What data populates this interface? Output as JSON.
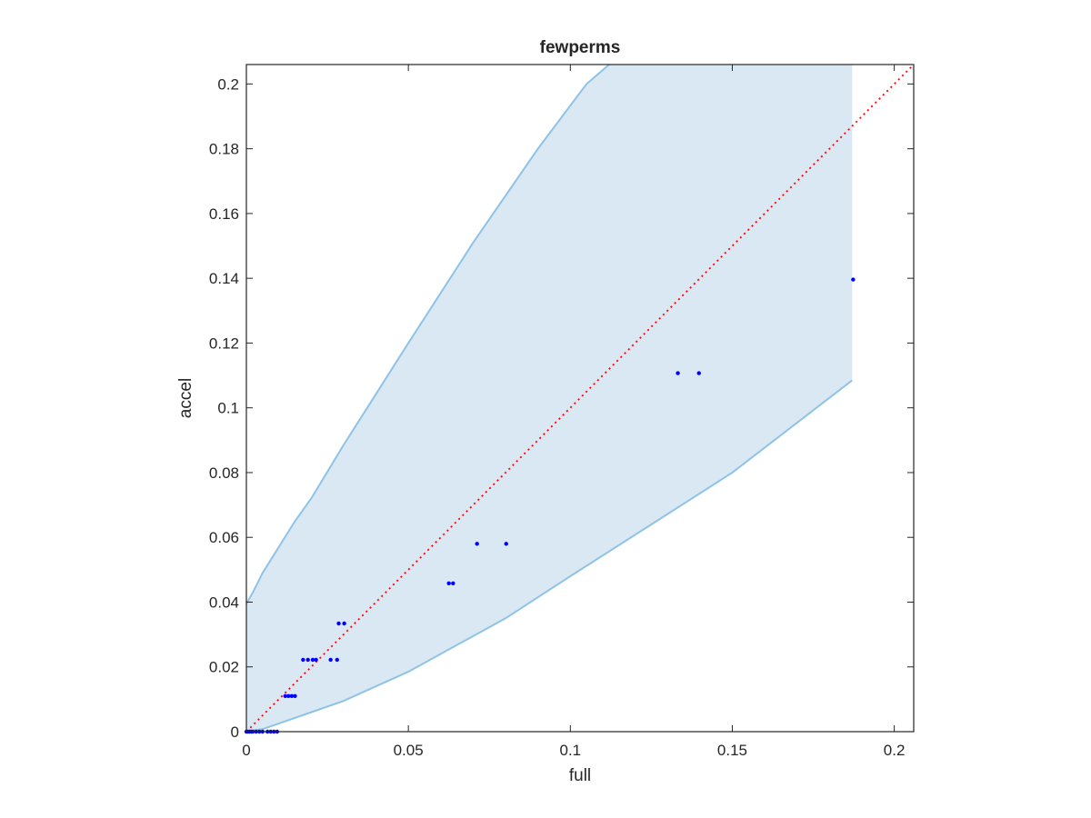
{
  "chart_data": {
    "type": "scatter",
    "title": "fewperms",
    "xlabel": "full",
    "ylabel": "accel",
    "xlim": [
      0,
      0.206
    ],
    "ylim": [
      0,
      0.206
    ],
    "xticks": [
      0,
      0.05,
      0.1,
      0.15,
      0.2
    ],
    "yticks": [
      0,
      0.02,
      0.04,
      0.06,
      0.08,
      0.1,
      0.12,
      0.14,
      0.16,
      0.18,
      0.2
    ],
    "xtick_labels": [
      "0",
      "0.05",
      "0.1",
      "0.15",
      "0.2"
    ],
    "ytick_labels": [
      "0",
      "0.02",
      "0.04",
      "0.06",
      "0.08",
      "0.1",
      "0.12",
      "0.14",
      "0.16",
      "0.18",
      "0.2"
    ],
    "grid": false,
    "colors": {
      "points": "#0000ff",
      "band_fill": "#dae8f4",
      "band_edge": "#8fc3e6",
      "diagonal": "#ff0000",
      "axes": "#262626"
    },
    "band": {
      "upper": [
        [
          0,
          0.0395
        ],
        [
          0.002,
          0.043
        ],
        [
          0.005,
          0.049
        ],
        [
          0.01,
          0.057
        ],
        [
          0.015,
          0.065
        ],
        [
          0.02,
          0.072
        ],
        [
          0.03,
          0.0885
        ],
        [
          0.05,
          0.12
        ],
        [
          0.07,
          0.151
        ],
        [
          0.09,
          0.18
        ],
        [
          0.105,
          0.2
        ],
        [
          0.112,
          0.2066
        ]
      ],
      "lower": [
        [
          0,
          0
        ],
        [
          0.005,
          0.0008
        ],
        [
          0.01,
          0.0025
        ],
        [
          0.02,
          0.006
        ],
        [
          0.03,
          0.0095
        ],
        [
          0.05,
          0.0185
        ],
        [
          0.08,
          0.035
        ],
        [
          0.1,
          0.048
        ],
        [
          0.15,
          0.08
        ],
        [
          0.187,
          0.1085
        ]
      ],
      "x_end": 0.187
    },
    "diagonal": {
      "from": [
        0,
        0
      ],
      "to": [
        0.206,
        0.206
      ],
      "style": "dotted"
    },
    "points": [
      [
        0.0,
        0.0
      ],
      [
        0.0005,
        0.0
      ],
      [
        0.001,
        0.0
      ],
      [
        0.0015,
        0.0
      ],
      [
        0.002,
        0.0
      ],
      [
        0.003,
        0.0
      ],
      [
        0.004,
        0.0
      ],
      [
        0.005,
        0.0
      ],
      [
        0.0065,
        0.0
      ],
      [
        0.0075,
        0.0
      ],
      [
        0.0085,
        0.0
      ],
      [
        0.0095,
        0.0
      ],
      [
        0.012,
        0.011
      ],
      [
        0.013,
        0.011
      ],
      [
        0.014,
        0.011
      ],
      [
        0.015,
        0.011
      ],
      [
        0.0175,
        0.0222
      ],
      [
        0.019,
        0.0222
      ],
      [
        0.0205,
        0.0222
      ],
      [
        0.0215,
        0.0222
      ],
      [
        0.026,
        0.0222
      ],
      [
        0.028,
        0.0222
      ],
      [
        0.0285,
        0.0334
      ],
      [
        0.0302,
        0.0334
      ],
      [
        0.0625,
        0.0458
      ],
      [
        0.0638,
        0.0458
      ],
      [
        0.0712,
        0.058
      ],
      [
        0.0802,
        0.058
      ],
      [
        0.1332,
        0.1107
      ],
      [
        0.1397,
        0.1107
      ],
      [
        0.1873,
        0.1396
      ]
    ]
  }
}
